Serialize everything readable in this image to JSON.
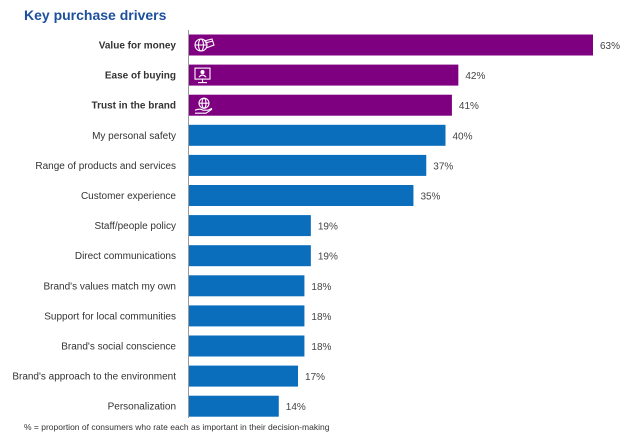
{
  "title": "Key purchase drivers",
  "footnote": "% = proportion of consumers who rate each as important in their decision-making",
  "colors": {
    "highlight": "#7e0080",
    "default": "#0a6ebd",
    "title": "#1c4f9c"
  },
  "chart_data": {
    "type": "bar",
    "orientation": "horizontal",
    "title": "Key purchase drivers",
    "xlim": [
      0,
      63
    ],
    "grid": false,
    "value_suffix": "%",
    "categories": [
      "Value for money",
      "Ease of buying",
      "Trust in the brand",
      "My personal safety",
      "Range of products and services",
      "Customer experience",
      "Staff/people policy",
      "Direct communications",
      "Brand's values match my own",
      "Support for local communities",
      "Brand's social conscience",
      "Brand's approach to the environment",
      "Personalization"
    ],
    "values": [
      63,
      42,
      41,
      40,
      37,
      35,
      19,
      19,
      18,
      18,
      18,
      17,
      14
    ],
    "highlighted": [
      true,
      true,
      true,
      false,
      false,
      false,
      false,
      false,
      false,
      false,
      false,
      false,
      false
    ],
    "icons": [
      "globe-money-icon",
      "computer-monitor-icon",
      "hand-globe-icon",
      null,
      null,
      null,
      null,
      null,
      null,
      null,
      null,
      null,
      null
    ]
  }
}
